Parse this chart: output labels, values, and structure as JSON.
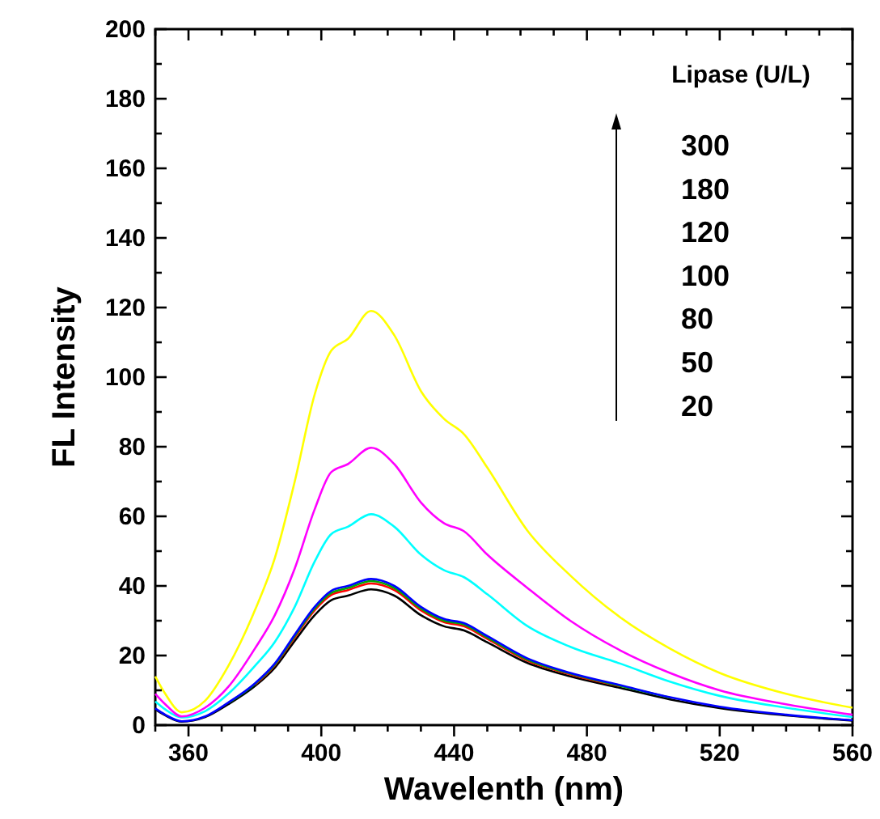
{
  "chart_data": {
    "type": "line",
    "xlabel": "Wavelenth (nm)",
    "ylabel": "FL Intensity",
    "x": [
      350,
      353,
      358,
      365,
      372,
      380,
      386,
      392,
      398,
      403,
      408,
      415,
      422,
      430,
      437,
      443,
      450,
      462,
      475,
      490,
      505,
      520,
      540,
      560
    ],
    "xlim": [
      350,
      560
    ],
    "xticks": [
      {
        "value": 350,
        "label": null
      },
      360,
      {
        "value": 370,
        "label": null
      },
      {
        "value": 380,
        "label": null
      },
      {
        "value": 390,
        "label": null
      },
      400,
      {
        "value": 410,
        "label": null
      },
      {
        "value": 420,
        "label": null
      },
      {
        "value": 430,
        "label": null
      },
      440,
      {
        "value": 450,
        "label": null
      },
      {
        "value": 460,
        "label": null
      },
      {
        "value": 470,
        "label": null
      },
      480,
      {
        "value": 490,
        "label": null
      },
      {
        "value": 500,
        "label": null
      },
      {
        "value": 510,
        "label": null
      },
      520,
      {
        "value": 530,
        "label": null
      },
      {
        "value": 540,
        "label": null
      },
      {
        "value": 550,
        "label": null
      },
      560
    ],
    "ylim": [
      0,
      200
    ],
    "yticks": [
      0,
      {
        "value": 10,
        "label": null
      },
      20,
      {
        "value": 30,
        "label": null
      },
      40,
      {
        "value": 50,
        "label": null
      },
      60,
      {
        "value": 70,
        "label": null
      },
      80,
      {
        "value": 90,
        "label": null
      },
      100,
      {
        "value": 110,
        "label": null
      },
      120,
      {
        "value": 130,
        "label": null
      },
      140,
      {
        "value": 150,
        "label": null
      },
      160,
      {
        "value": 170,
        "label": null
      },
      180,
      {
        "value": 190,
        "label": null
      },
      200
    ],
    "grid": false,
    "marker": "none",
    "line_style": "solid",
    "annotations": [
      "Lipase (U/L)",
      "300",
      "180",
      "120",
      "100",
      "80",
      "50",
      "20"
    ],
    "series": [
      {
        "color": "#ffff00",
        "values": [
          14,
          9,
          3.7,
          7,
          17,
          33,
          48,
          70,
          95,
          107.6,
          111,
          119,
          112,
          96,
          88,
          83.6,
          74,
          56,
          43,
          31,
          22,
          15,
          9,
          5
        ]
      },
      {
        "color": "#ff00ff",
        "values": [
          9,
          6,
          2.5,
          5,
          11,
          22,
          31.6,
          45,
          62,
          72.7,
          75,
          79.7,
          75,
          64,
          58,
          55.7,
          49,
          39.5,
          30,
          21.5,
          15,
          10,
          6,
          3
        ]
      },
      {
        "color": "#00ffff",
        "values": [
          6.8,
          4.5,
          2.2,
          4,
          9,
          17,
          23.9,
          34,
          47,
          54.9,
          57,
          60.6,
          57,
          49,
          44.5,
          42.5,
          37.6,
          28.5,
          22.5,
          17.7,
          12.5,
          8.4,
          5,
          2.3
        ]
      },
      {
        "color": "#0000ff",
        "values": [
          4.8,
          3,
          1.1,
          2.5,
          6.5,
          12,
          17.7,
          26,
          34,
          38.6,
          40,
          42,
          40,
          34,
          30.5,
          29.3,
          25.6,
          19.2,
          15,
          11.5,
          8,
          5.3,
          3,
          1.4
        ]
      },
      {
        "color": "#00aa00",
        "values": [
          null,
          null,
          null,
          null,
          6.4,
          11.8,
          17.4,
          25.6,
          33.5,
          38,
          39.4,
          41.4,
          39.4,
          33.5,
          30,
          28.9,
          25.2,
          18.9,
          14.8,
          11.3,
          7.9,
          null,
          null,
          null
        ]
      },
      {
        "color": "#ff0000",
        "values": [
          null,
          null,
          null,
          null,
          null,
          11.6,
          17.2,
          25.2,
          33,
          37.4,
          38.8,
          40.7,
          38.8,
          33,
          29.6,
          28.4,
          24.8,
          18.6,
          14.6,
          11.2,
          null,
          null,
          null,
          null
        ]
      },
      {
        "color": "#000000",
        "values": [
          4.5,
          2.8,
          1,
          2.3,
          6,
          11.2,
          16.5,
          24.2,
          31.6,
          35.9,
          37.2,
          39,
          37.2,
          31.6,
          28.4,
          27.2,
          23.8,
          17.9,
          14,
          10.7,
          7.4,
          4.9,
          2.8,
          1.3
        ]
      }
    ]
  }
}
